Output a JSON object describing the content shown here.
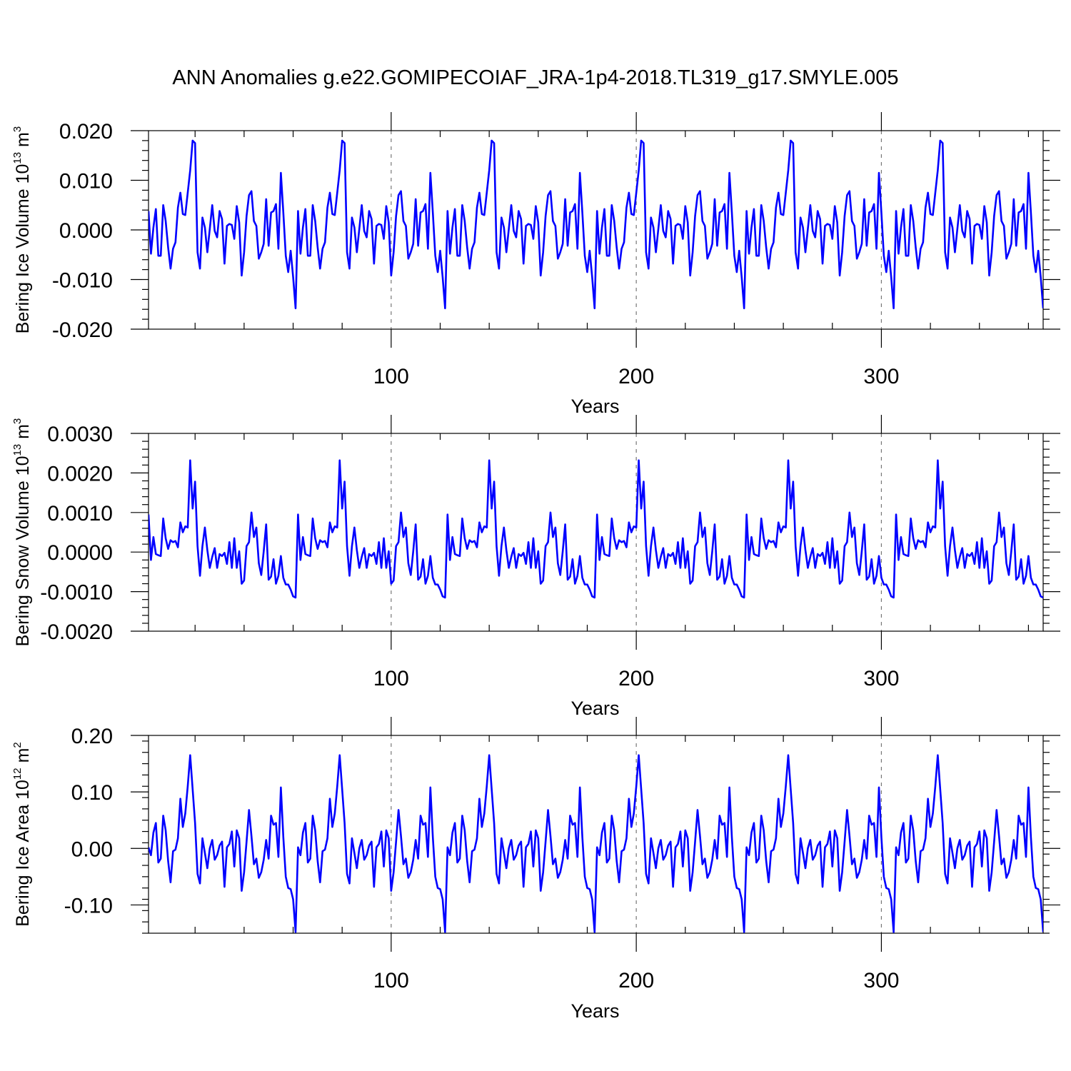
{
  "title": "ANN Anomalies g.e22.GOMIPECOIAF_JRA-1p4-2018.TL319_g17.SMYLE.005",
  "chart_data": [
    {
      "type": "line",
      "name": "bering-ice-volume",
      "ylabel_main": "Bering Ice Volume 10",
      "ylabel_exp": "13",
      "ylabel_unit": " m",
      "ylabel_unit_exp": "3",
      "xlabel": "Years",
      "xlim": [
        1,
        366
      ],
      "ylim": [
        -0.02,
        0.02
      ],
      "yticks": [
        -0.02,
        -0.01,
        0.0,
        0.01,
        0.02
      ],
      "ytick_labels": [
        "-0.020",
        "-0.010",
        "0.000",
        "0.010",
        "0.020"
      ],
      "xticks": [
        100,
        200,
        300
      ],
      "xtick_labels": [
        "100",
        "200",
        "300"
      ],
      "series": [
        {
          "name": "Bering Ice Volume",
          "color": "#0000ff",
          "period": 61,
          "x_start": 1,
          "x_end": 366,
          "cycle": [
            0.0038,
            -0.0048,
            0.0005,
            0.0042,
            -0.0052,
            -0.0052,
            0.005,
            0.0018,
            -0.0035,
            -0.0078,
            -0.0038,
            -0.0025,
            0.0045,
            0.0075,
            0.0032,
            0.003,
            0.0075,
            0.012,
            0.018,
            0.0175,
            -0.0045,
            -0.0078,
            0.0025,
            0.0005,
            -0.0045,
            0.0002,
            0.005,
            -0.0002,
            -0.0015,
            0.0038,
            0.0022,
            -0.0068,
            0.0008,
            0.0012,
            0.001,
            -0.0018,
            0.0048,
            0.0015,
            -0.0092,
            -0.0045,
            0.0028,
            0.007,
            0.0078,
            0.0018,
            0.0008,
            -0.0058,
            -0.0045,
            -0.0028,
            0.0062,
            -0.0032,
            0.0035,
            0.0038,
            0.0052,
            -0.0038,
            0.0115,
            0.0035,
            -0.0052,
            -0.0085,
            -0.0042,
            -0.0095,
            -0.0158
          ]
        }
      ]
    },
    {
      "type": "line",
      "name": "bering-snow-volume",
      "ylabel_main": "Bering Snow Volume 10",
      "ylabel_exp": "13",
      "ylabel_unit": " m",
      "ylabel_unit_exp": "3",
      "xlabel": "Years",
      "xlim": [
        1,
        366
      ],
      "ylim": [
        -0.002,
        0.003
      ],
      "yticks": [
        -0.002,
        -0.001,
        0.0,
        0.001,
        0.002,
        0.003
      ],
      "ytick_labels": [
        "-0.0020",
        "-0.0010",
        "0.0000",
        "0.0010",
        "0.0020",
        "0.0030"
      ],
      "xticks": [
        100,
        200,
        300
      ],
      "xtick_labels": [
        "100",
        "200",
        "300"
      ],
      "series": [
        {
          "name": "Bering Snow Volume",
          "color": "#0000ff",
          "period": 61,
          "x_start": 1,
          "x_end": 366,
          "cycle": [
            0.00095,
            -0.0002,
            0.00038,
            -5e-05,
            -8e-05,
            -0.0001,
            0.00085,
            0.00035,
            8e-05,
            0.0003,
            0.00025,
            0.00028,
            0.00012,
            0.00075,
            0.0005,
            0.00065,
            0.00062,
            0.00232,
            0.0011,
            0.00178,
            0.00015,
            -0.0006,
            0.00015,
            0.00062,
            5e-05,
            -0.0004,
            -0.00012,
            0.0001,
            -0.0004,
            -5e-05,
            -0.0001,
            -2e-05,
            -0.0003,
            0.00025,
            -0.0004,
            0.00035,
            -0.0004,
            2e-05,
            -0.0008,
            -0.00072,
            0.00015,
            0.00025,
            0.001,
            0.00038,
            0.00062,
            -0.00028,
            -0.00058,
            2e-05,
            0.0007,
            -0.0007,
            -0.00062,
            -0.00018,
            -0.0008,
            -0.0006,
            -0.0001,
            -0.00065,
            -0.00082,
            -0.00082,
            -0.00095,
            -0.00112,
            -0.00115
          ]
        }
      ]
    },
    {
      "type": "line",
      "name": "bering-ice-area",
      "ylabel_main": "Bering Ice Area 10",
      "ylabel_exp": "12",
      "ylabel_unit": " m",
      "ylabel_unit_exp": "2",
      "xlabel": "Years",
      "xlim": [
        1,
        366
      ],
      "ylim": [
        -0.15,
        0.2
      ],
      "yticks": [
        -0.1,
        0.0,
        0.1,
        0.2
      ],
      "ytick_labels": [
        "-0.10",
        "0.00",
        "0.10",
        "0.20"
      ],
      "xticks": [
        100,
        200,
        300
      ],
      "xtick_labels": [
        "100",
        "200",
        "300"
      ],
      "series": [
        {
          "name": "Bering Ice Area",
          "color": "#0000ff",
          "period": 61,
          "x_start": 1,
          "x_end": 366,
          "cycle": [
            0.002,
            -0.012,
            0.028,
            0.045,
            -0.025,
            -0.018,
            0.058,
            0.032,
            -0.022,
            -0.06,
            -0.005,
            -0.002,
            0.018,
            0.088,
            0.038,
            0.062,
            0.11,
            0.165,
            0.105,
            0.045,
            -0.045,
            -0.062,
            0.018,
            -0.008,
            -0.035,
            0.0,
            0.015,
            -0.02,
            -0.012,
            0.005,
            0.012,
            -0.068,
            0.002,
            0.008,
            0.03,
            -0.032,
            0.032,
            0.018,
            -0.075,
            -0.042,
            0.012,
            0.068,
            0.022,
            -0.028,
            -0.018,
            -0.052,
            -0.042,
            -0.02,
            0.015,
            -0.018,
            0.058,
            0.042,
            0.045,
            -0.015,
            0.108,
            0.02,
            -0.05,
            -0.07,
            -0.072,
            -0.09,
            -0.148
          ]
        }
      ]
    }
  ]
}
